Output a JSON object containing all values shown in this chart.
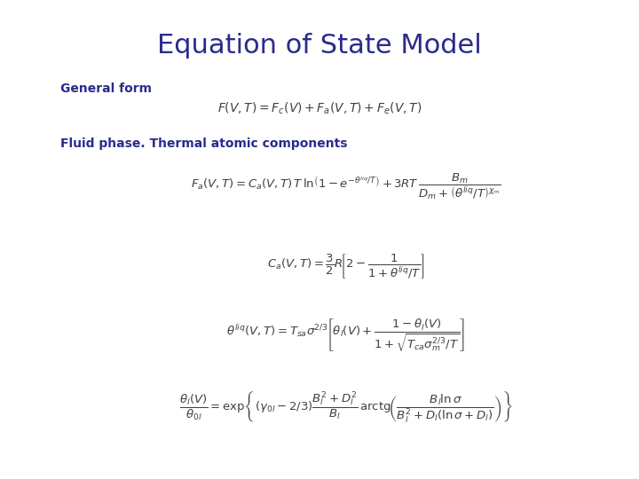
{
  "title": "Equation of State Model",
  "title_color": "#2B2B8C",
  "title_fontsize": 22,
  "label1": "General form",
  "label1_color": "#2B2B8C",
  "label1_fontsize": 10,
  "label2": "Fluid phase. Thermal atomic components",
  "label2_color": "#2B2B8C",
  "label2_fontsize": 10,
  "bg_color": "#ffffff",
  "eq_color": "#404040",
  "eq_fontsize": 9.5
}
